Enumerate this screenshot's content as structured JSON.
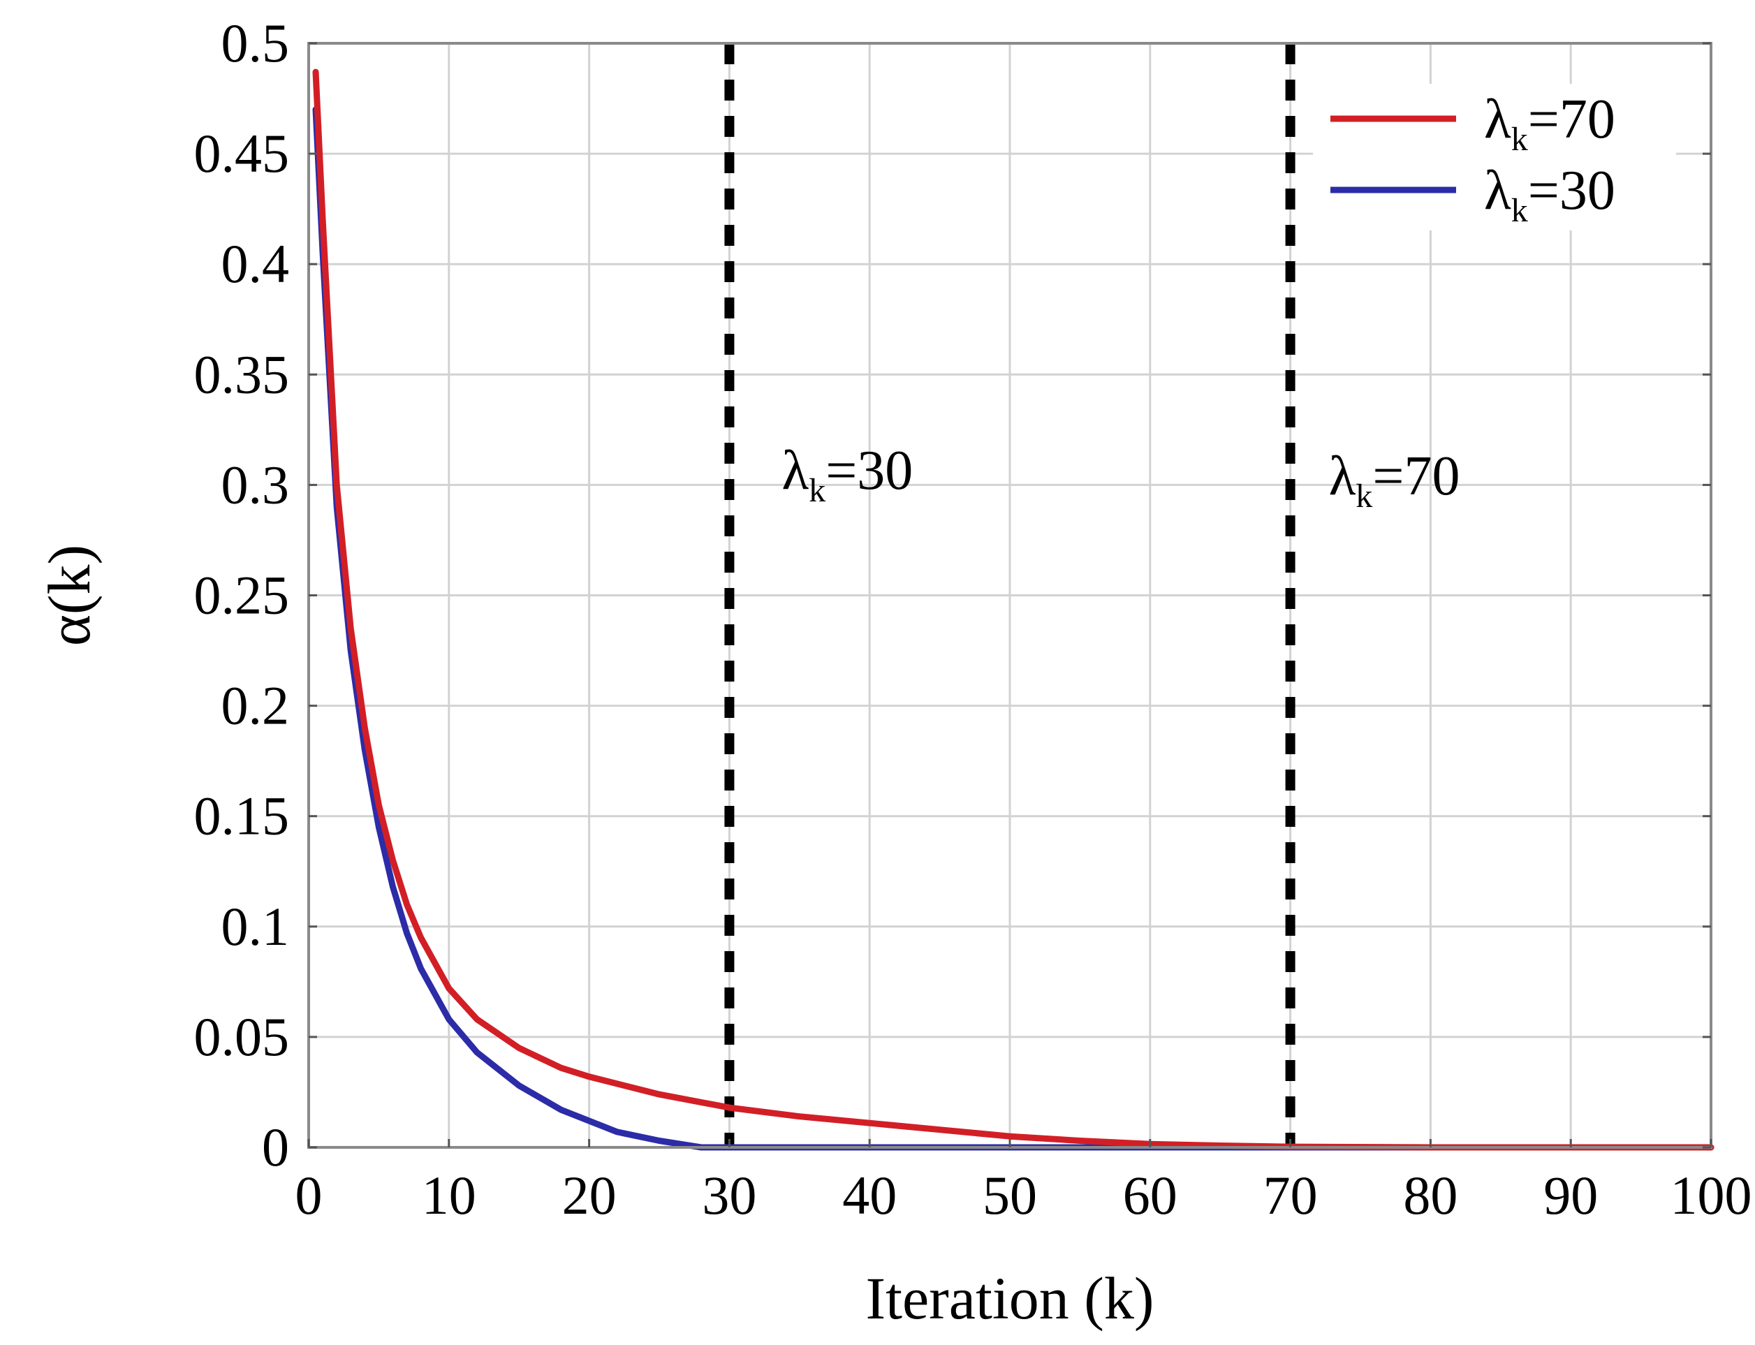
{
  "chart_data": {
    "type": "line",
    "title": "",
    "xlabel": "Iteration (k)",
    "ylabel": "α(k)",
    "xlim": [
      0,
      100
    ],
    "ylim": [
      0,
      0.5
    ],
    "grid": true,
    "x_ticks": [
      0,
      10,
      20,
      30,
      40,
      50,
      60,
      70,
      80,
      90,
      100
    ],
    "x_tick_labels": [
      "0",
      "10",
      "20",
      "30",
      "40",
      "50",
      "60",
      "70",
      "80",
      "90",
      "100"
    ],
    "y_ticks": [
      0,
      0.05,
      0.1,
      0.15,
      0.2,
      0.25,
      0.3,
      0.35,
      0.4,
      0.45,
      0.5
    ],
    "y_tick_labels": [
      "0",
      "0.05",
      "0.1",
      "0.15",
      "0.2",
      "0.25",
      "0.3",
      "0.35",
      "0.4",
      "0.45",
      "0.5"
    ],
    "legend_position": "top-right",
    "series": [
      {
        "name": "λk=70",
        "legend_main": "λ",
        "legend_sub": "k",
        "legend_tail": "=70",
        "color": "#d21f26",
        "x": [
          0.5,
          1,
          2,
          3,
          4,
          5,
          6,
          7,
          8,
          10,
          12,
          15,
          18,
          20,
          25,
          30,
          35,
          40,
          45,
          50,
          55,
          60,
          65,
          70,
          80,
          90,
          100
        ],
        "y": [
          0.487,
          0.42,
          0.3,
          0.235,
          0.19,
          0.155,
          0.13,
          0.11,
          0.095,
          0.072,
          0.058,
          0.045,
          0.036,
          0.032,
          0.024,
          0.018,
          0.014,
          0.011,
          0.008,
          0.005,
          0.003,
          0.0015,
          0.0008,
          0.0003,
          0.0,
          0.0,
          0.0
        ]
      },
      {
        "name": "λk=30",
        "legend_main": "λ",
        "legend_sub": "k",
        "legend_tail": "=30",
        "color": "#2c2ca8",
        "x": [
          0.5,
          1,
          2,
          3,
          4,
          5,
          6,
          7,
          8,
          10,
          12,
          15,
          18,
          20,
          22,
          25,
          27,
          28,
          30,
          40,
          50,
          60,
          70,
          80,
          90,
          100
        ],
        "y": [
          0.47,
          0.405,
          0.29,
          0.225,
          0.18,
          0.145,
          0.118,
          0.097,
          0.081,
          0.058,
          0.043,
          0.028,
          0.017,
          0.012,
          0.007,
          0.003,
          0.001,
          0.0,
          0.0,
          0.0,
          0.0,
          0.0,
          0.0,
          0.0,
          0.0,
          0.0
        ]
      }
    ],
    "annotations": [
      {
        "x": 30,
        "label_main": "λ",
        "label_sub": "k",
        "label_tail": "=30",
        "style": "dashed-vertical"
      },
      {
        "x": 70,
        "label_main": "λ",
        "label_sub": "k",
        "label_tail": "=70",
        "style": "dashed-vertical"
      }
    ]
  }
}
